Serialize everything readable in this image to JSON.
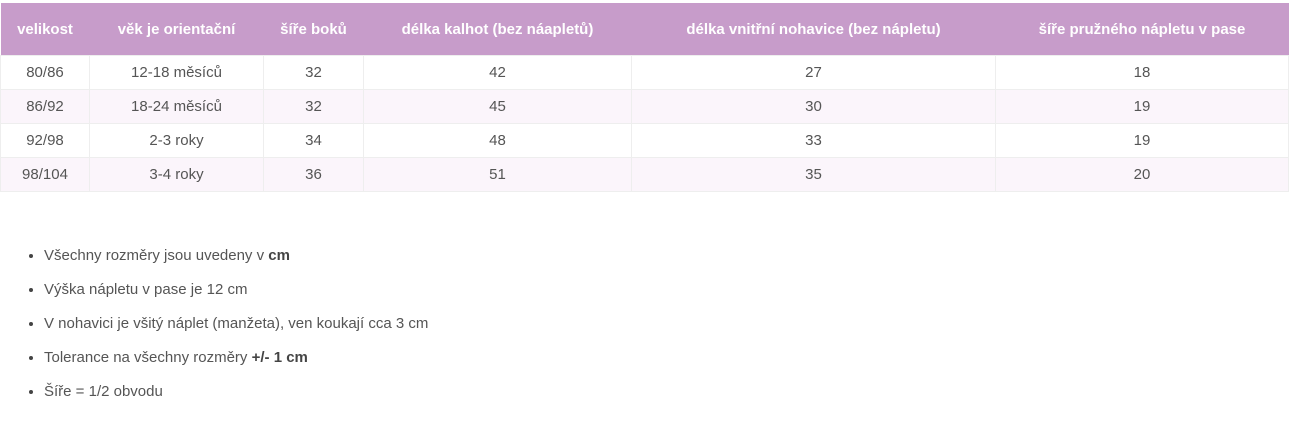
{
  "table": {
    "header": [
      "velikost",
      "věk je orientační",
      "šíře boků",
      "délka kalhot (bez náapletů)",
      "délka vnitřní nohavice (bez nápletu)",
      "šíře pružného nápletu v pase"
    ],
    "rows": [
      [
        "80/86",
        "12-18 měsíců",
        32,
        42,
        27,
        18
      ],
      [
        "86/92",
        "18-24 měsíců",
        32,
        45,
        30,
        19
      ],
      [
        "92/98",
        "2-3 roky",
        34,
        48,
        33,
        19
      ],
      [
        "98/104",
        "3-4 roky",
        36,
        51,
        35,
        20
      ]
    ]
  },
  "notes": [
    {
      "text": "Všechny rozměry jsou uvedeny v",
      "bold": "cm"
    },
    {
      "text": "Výška nápletu v pase je 12 cm"
    },
    {
      "text": "V nohavici je všitý náplet (manžeta), ven koukají cca 3 cm"
    },
    {
      "text": "Tolerance na všechny rozměry",
      "bold": "+/- 1 cm"
    },
    {
      "text": "Šíře = 1/2 obvodu"
    }
  ]
}
